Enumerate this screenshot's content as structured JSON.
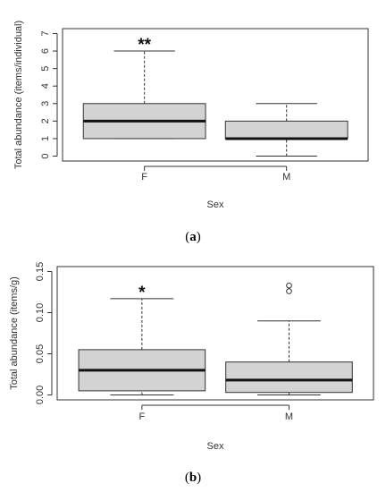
{
  "panels": [
    {
      "caption_letter": "a",
      "chart_data": {
        "type": "box",
        "xlabel": "Sex",
        "ylabel": "Total abundance (items/individual)",
        "categories": [
          "F",
          "M"
        ],
        "ylim": [
          0,
          7
        ],
        "yticks": [
          {
            "v": 0,
            "label": "0"
          },
          {
            "v": 1,
            "label": "1"
          },
          {
            "v": 2,
            "label": "2"
          },
          {
            "v": 3,
            "label": "3"
          },
          {
            "v": 4,
            "label": "4"
          },
          {
            "v": 5,
            "label": "5"
          },
          {
            "v": 6,
            "label": "6"
          },
          {
            "v": 7,
            "label": "7"
          }
        ],
        "boxes": [
          {
            "category": "F",
            "min": 1,
            "q1": 1,
            "median": 2,
            "q3": 3,
            "max": 6,
            "outliers": [],
            "significance": "**"
          },
          {
            "category": "M",
            "min": 0,
            "q1": 1,
            "median": 1,
            "q3": 2,
            "max": 3,
            "outliers": [],
            "significance": ""
          }
        ],
        "grid": false,
        "box_fill": "#d3d3d3"
      }
    },
    {
      "caption_letter": "b",
      "chart_data": {
        "type": "box",
        "xlabel": "Sex",
        "ylabel": "Total abundance (items/g)",
        "categories": [
          "F",
          "M"
        ],
        "ylim": [
          0,
          0.15
        ],
        "yticks": [
          {
            "v": 0,
            "label": "0.00"
          },
          {
            "v": 0.05,
            "label": "0.05"
          },
          {
            "v": 0.1,
            "label": "0.10"
          },
          {
            "v": 0.15,
            "label": "0.15"
          }
        ],
        "boxes": [
          {
            "category": "F",
            "min": 0,
            "q1": 0.005,
            "median": 0.03,
            "q3": 0.055,
            "max": 0.117,
            "outliers": [],
            "significance": "*"
          },
          {
            "category": "M",
            "min": 0,
            "q1": 0.003,
            "median": 0.018,
            "q3": 0.04,
            "max": 0.09,
            "outliers": [
              0.126,
              0.133
            ],
            "significance": ""
          }
        ],
        "grid": false,
        "box_fill": "#d3d3d3"
      }
    }
  ]
}
